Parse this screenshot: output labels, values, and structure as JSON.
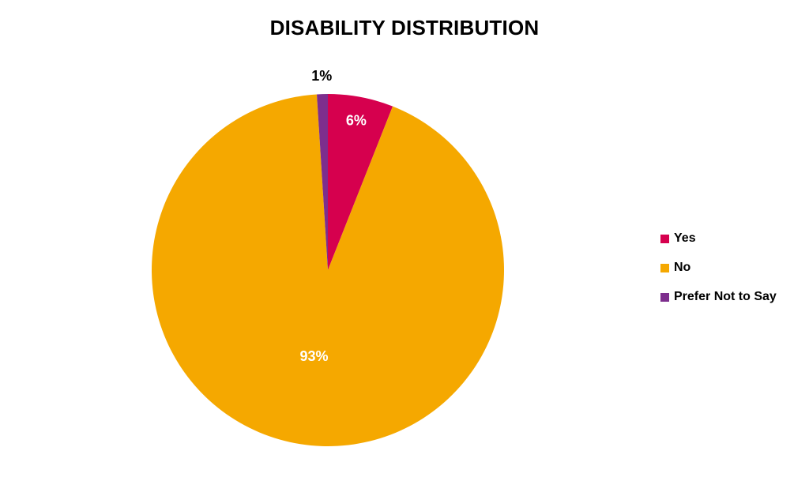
{
  "chart_data": {
    "type": "pie",
    "title": "DISABILITY DISTRIBUTION",
    "categories": [
      "Yes",
      "No",
      "Prefer Not to Say"
    ],
    "values": [
      6,
      93,
      1
    ],
    "data_labels": [
      "6%",
      "93%",
      "1%"
    ],
    "colors": [
      "#D6004E",
      "#F5A800",
      "#7D2E8D"
    ],
    "label_colors": [
      "#ffffff",
      "#ffffff",
      "#000000"
    ],
    "legend_position": "right"
  }
}
